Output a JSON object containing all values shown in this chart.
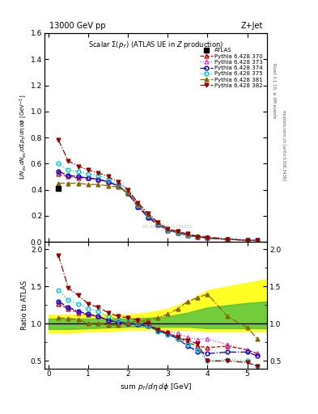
{
  "title_top": "13000 GeV pp",
  "title_right": "Z+Jet",
  "plot_title": "Scalar Σ(p_{T}) (ATLAS UE in Z production)",
  "ylabel_main": "1/N_{ev} dN_{ev}/dsum p_{T}/dη dφ  [GeV]⁻¹",
  "ylabel_ratio": "Ratio to ATLAS",
  "xlabel": "sum p_{T}/dη dφ [GeV]",
  "right_label": "Rivet 3.1.10, ≥ 3M events",
  "right_label2": "mcplots.cern.ch [arXiv:1306.3436]",
  "watermark": "ATLAS_2014_I1736531",
  "main_ylim": [
    0.0,
    1.6
  ],
  "ratio_ylim": [
    0.4,
    2.1
  ],
  "xlim": [
    -0.1,
    5.5
  ],
  "atlas_x": [
    0.25
  ],
  "atlas_y": [
    0.41
  ],
  "atlas_yerr": [
    0.02
  ],
  "series": [
    {
      "label": "Pythia 6.428 370",
      "color": "#cc0000",
      "linestyle": "--",
      "marker": "^",
      "markerfacecolor": "none",
      "x": [
        0.25,
        0.5,
        0.75,
        1.0,
        1.25,
        1.5,
        1.75,
        2.0,
        2.25,
        2.5,
        2.75,
        3.0,
        3.25,
        3.5,
        3.75,
        4.0,
        4.5,
        5.0,
        5.25
      ],
      "y": [
        0.52,
        0.5,
        0.49,
        0.49,
        0.48,
        0.46,
        0.43,
        0.37,
        0.28,
        0.2,
        0.14,
        0.09,
        0.07,
        0.05,
        0.04,
        0.03,
        0.02,
        0.013,
        0.011
      ],
      "ratio": [
        1.27,
        1.2,
        1.15,
        1.12,
        1.1,
        1.05,
        1.02,
        1.01,
        1.0,
        0.98,
        0.92,
        0.88,
        0.82,
        0.75,
        0.7,
        0.68,
        0.7,
        0.65,
        0.6
      ]
    },
    {
      "label": "Pythia 6.428 373",
      "color": "#cc44cc",
      "linestyle": ":",
      "marker": "^",
      "markerfacecolor": "none",
      "x": [
        0.25,
        0.5,
        0.75,
        1.0,
        1.25,
        1.5,
        1.75,
        2.0,
        2.25,
        2.5,
        2.75,
        3.0,
        3.25,
        3.5,
        3.75,
        4.0,
        4.5,
        5.0,
        5.25
      ],
      "y": [
        0.54,
        0.51,
        0.5,
        0.49,
        0.48,
        0.46,
        0.43,
        0.37,
        0.27,
        0.19,
        0.13,
        0.09,
        0.07,
        0.05,
        0.04,
        0.03,
        0.02,
        0.013,
        0.011
      ],
      "ratio": [
        1.3,
        1.22,
        1.17,
        1.13,
        1.1,
        1.05,
        1.02,
        1.01,
        0.99,
        0.97,
        0.91,
        0.9,
        0.87,
        0.82,
        0.79,
        0.8,
        0.72,
        0.65,
        0.6
      ]
    },
    {
      "label": "Pythia 6.428 374",
      "color": "#0000cc",
      "linestyle": "-.",
      "marker": "o",
      "markerfacecolor": "none",
      "x": [
        0.25,
        0.5,
        0.75,
        1.0,
        1.25,
        1.5,
        1.75,
        2.0,
        2.25,
        2.5,
        2.75,
        3.0,
        3.25,
        3.5,
        3.75,
        4.0,
        4.5,
        5.0,
        5.25
      ],
      "y": [
        0.54,
        0.51,
        0.5,
        0.49,
        0.48,
        0.46,
        0.43,
        0.37,
        0.27,
        0.19,
        0.13,
        0.09,
        0.07,
        0.05,
        0.04,
        0.03,
        0.02,
        0.013,
        0.011
      ],
      "ratio": [
        1.3,
        1.22,
        1.17,
        1.13,
        1.1,
        1.05,
        1.02,
        1.01,
        0.99,
        0.97,
        0.91,
        0.86,
        0.8,
        0.7,
        0.63,
        0.6,
        0.62,
        0.62,
        0.57
      ]
    },
    {
      "label": "Pythia 6.428 375",
      "color": "#00cccc",
      "linestyle": ":",
      "marker": "o",
      "markerfacecolor": "none",
      "x": [
        0.25,
        0.5,
        0.75,
        1.0,
        1.25,
        1.5,
        1.75,
        2.0,
        2.25,
        2.5,
        2.75,
        3.0,
        3.25,
        3.5,
        3.75,
        4.0,
        4.5,
        5.0,
        5.25
      ],
      "y": [
        0.6,
        0.55,
        0.54,
        0.52,
        0.51,
        0.48,
        0.44,
        0.38,
        0.28,
        0.2,
        0.14,
        0.09,
        0.07,
        0.05,
        0.04,
        0.03,
        0.02,
        0.013,
        0.011
      ],
      "ratio": [
        1.45,
        1.32,
        1.27,
        1.2,
        1.17,
        1.1,
        1.06,
        1.03,
        1.01,
        0.97,
        0.9,
        0.85,
        0.8,
        0.72,
        0.65,
        0.5,
        0.52,
        0.5,
        0.43
      ]
    },
    {
      "label": "Pythia 6.428 381",
      "color": "#886600",
      "linestyle": "-.",
      "marker": "^",
      "markerfacecolor": "#886600",
      "x": [
        0.25,
        0.5,
        0.75,
        1.0,
        1.25,
        1.5,
        1.75,
        2.0,
        2.25,
        2.5,
        2.75,
        3.0,
        3.25,
        3.5,
        3.75,
        4.0,
        4.5,
        5.0,
        5.25
      ],
      "y": [
        0.45,
        0.45,
        0.45,
        0.44,
        0.44,
        0.43,
        0.42,
        0.38,
        0.29,
        0.21,
        0.15,
        0.1,
        0.08,
        0.06,
        0.045,
        0.04,
        0.022,
        0.013,
        0.011
      ],
      "ratio": [
        1.08,
        1.07,
        1.06,
        1.0,
        1.01,
        0.98,
        0.98,
        1.02,
        1.04,
        1.05,
        1.08,
        1.13,
        1.2,
        1.3,
        1.35,
        1.4,
        1.1,
        0.95,
        0.8
      ]
    },
    {
      "label": "Pythia 6.428 382",
      "color": "#990000",
      "linestyle": "-.",
      "marker": "v",
      "markerfacecolor": "#990000",
      "x": [
        0.25,
        0.5,
        0.75,
        1.0,
        1.25,
        1.5,
        1.75,
        2.0,
        2.25,
        2.5,
        2.75,
        3.0,
        3.25,
        3.5,
        3.75,
        4.0,
        4.5,
        5.0,
        5.25
      ],
      "y": [
        0.78,
        0.62,
        0.58,
        0.55,
        0.53,
        0.5,
        0.46,
        0.4,
        0.3,
        0.22,
        0.15,
        0.1,
        0.08,
        0.06,
        0.04,
        0.03,
        0.02,
        0.013,
        0.011
      ],
      "ratio": [
        1.92,
        1.48,
        1.38,
        1.27,
        1.22,
        1.15,
        1.1,
        1.08,
        1.05,
        1.0,
        0.92,
        0.87,
        0.82,
        0.78,
        0.73,
        0.5,
        0.5,
        0.48,
        0.43
      ]
    }
  ],
  "band_yellow_x": [
    0.0,
    0.5,
    1.0,
    1.5,
    2.0,
    2.5,
    3.0,
    3.5,
    4.0,
    4.5,
    5.0,
    5.5
  ],
  "band_yellow_lo": [
    0.88,
    0.88,
    0.9,
    0.9,
    0.92,
    0.92,
    0.92,
    0.92,
    0.9,
    0.9,
    0.9,
    0.9
  ],
  "band_yellow_hi": [
    1.12,
    1.12,
    1.12,
    1.12,
    1.12,
    1.15,
    1.2,
    1.3,
    1.45,
    1.5,
    1.55,
    1.6
  ],
  "band_green_x": [
    0.0,
    0.5,
    1.0,
    1.5,
    2.0,
    2.5,
    3.0,
    3.5,
    4.0,
    4.5,
    5.0,
    5.5
  ],
  "band_green_lo": [
    0.93,
    0.93,
    0.94,
    0.95,
    0.96,
    0.96,
    0.96,
    0.96,
    0.94,
    0.94,
    0.94,
    0.94
  ],
  "band_green_hi": [
    1.07,
    1.07,
    1.07,
    1.07,
    1.07,
    1.08,
    1.1,
    1.15,
    1.22,
    1.25,
    1.28,
    1.3
  ]
}
